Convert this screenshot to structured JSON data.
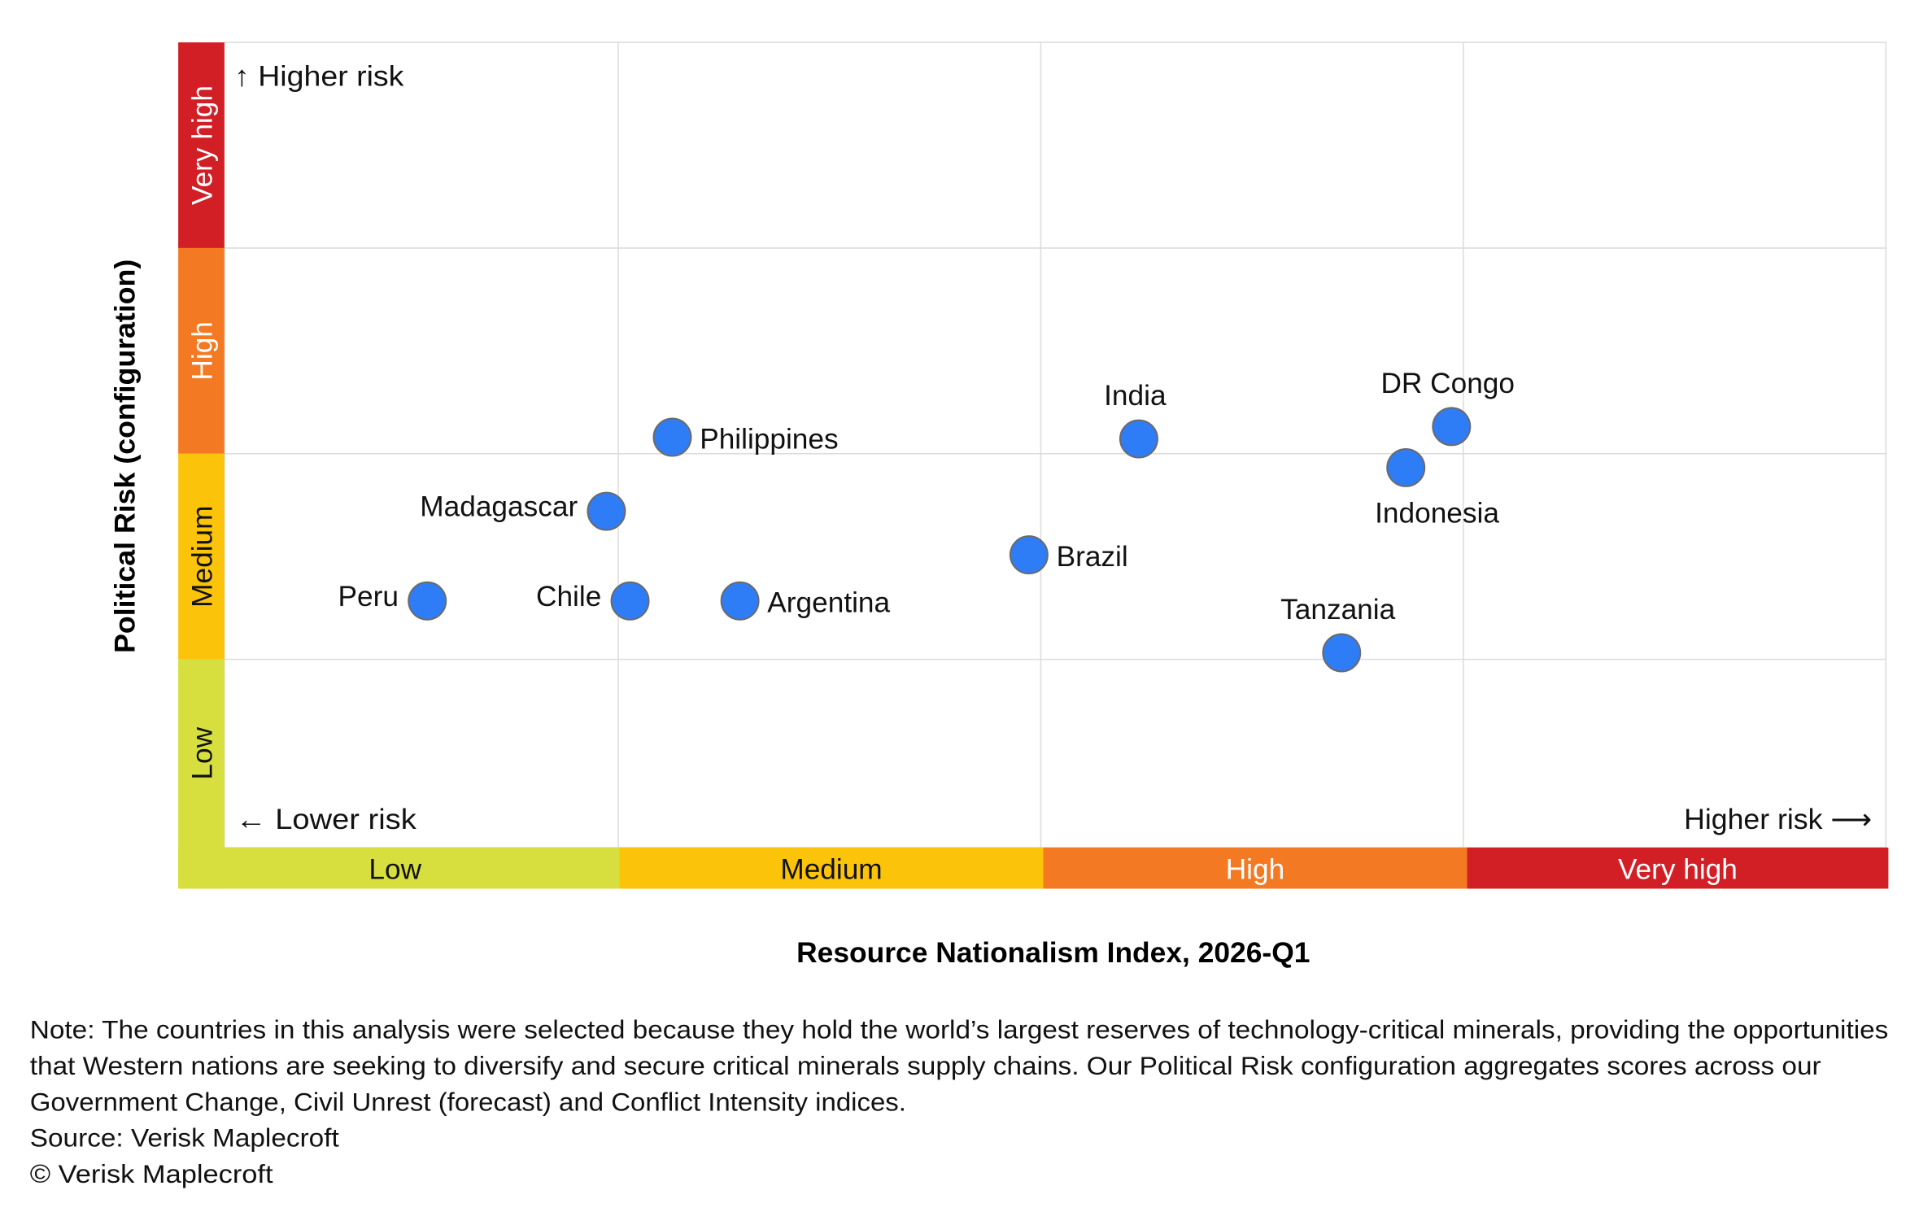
{
  "chart_data": {
    "type": "scatter",
    "title": "",
    "xlabel": "Resource Nationalism Index, 2026-Q1",
    "ylabel": "Political Risk (configuration)",
    "xlim": [
      0,
      10
    ],
    "ylim": [
      0,
      10
    ],
    "grid": true,
    "x_bands": [
      {
        "label": "Low",
        "color": "#d7df3f",
        "text_color": "#111111"
      },
      {
        "label": "Medium",
        "color": "#fcc30b",
        "text_color": "#111111"
      },
      {
        "label": "High",
        "color": "#f37a23",
        "text_color": "#ffffff"
      },
      {
        "label": "Very high",
        "color": "#d21f26",
        "text_color": "#ffffff"
      }
    ],
    "y_bands": [
      {
        "label": "Low",
        "color": "#d7df3f",
        "text_color": "#111111"
      },
      {
        "label": "Medium",
        "color": "#fcc30b",
        "text_color": "#111111"
      },
      {
        "label": "High",
        "color": "#f37a23",
        "text_color": "#ffffff"
      },
      {
        "label": "Very high",
        "color": "#d21f26",
        "text_color": "#ffffff"
      }
    ],
    "annotations": {
      "higher_risk_up": "↑ Higher risk",
      "lower_risk": "← Lower risk",
      "higher_risk_right": "Higher risk ⟶"
    },
    "point_color": "#2f7df6",
    "points": [
      {
        "name": "Peru",
        "x": 1.37,
        "y": 3.21,
        "label_pos": "left"
      },
      {
        "name": "Chile",
        "x": 2.57,
        "y": 3.21,
        "label_pos": "left"
      },
      {
        "name": "Argentina",
        "x": 3.22,
        "y": 3.21,
        "label_pos": "right"
      },
      {
        "name": "Madagascar",
        "x": 2.43,
        "y": 4.3,
        "label_pos": "left"
      },
      {
        "name": "Philippines",
        "x": 2.82,
        "y": 5.2,
        "label_pos": "right"
      },
      {
        "name": "Brazil",
        "x": 4.93,
        "y": 3.77,
        "label_pos": "right"
      },
      {
        "name": "India",
        "x": 5.58,
        "y": 5.18,
        "label_pos": "top"
      },
      {
        "name": "DR Congo",
        "x": 7.43,
        "y": 5.33,
        "label_pos": "top"
      },
      {
        "name": "Indonesia",
        "x": 7.16,
        "y": 4.83,
        "label_pos": "bottom"
      },
      {
        "name": "Tanzania",
        "x": 6.78,
        "y": 2.58,
        "label_pos": "top"
      }
    ]
  },
  "note": {
    "lines": [
      "Note: The countries in this analysis were selected because they hold the world’s largest reserves of technology-critical minerals, providing the opportunities",
      "that Western nations are seeking to diversify and secure critical minerals supply chains. Our Political Risk configuration aggregates scores across our",
      "Government Change, Civil Unrest (forecast) and Conflict Intensity indices."
    ],
    "source": "Source: Verisk Maplecroft",
    "copyright": "© Verisk Maplecroft"
  }
}
